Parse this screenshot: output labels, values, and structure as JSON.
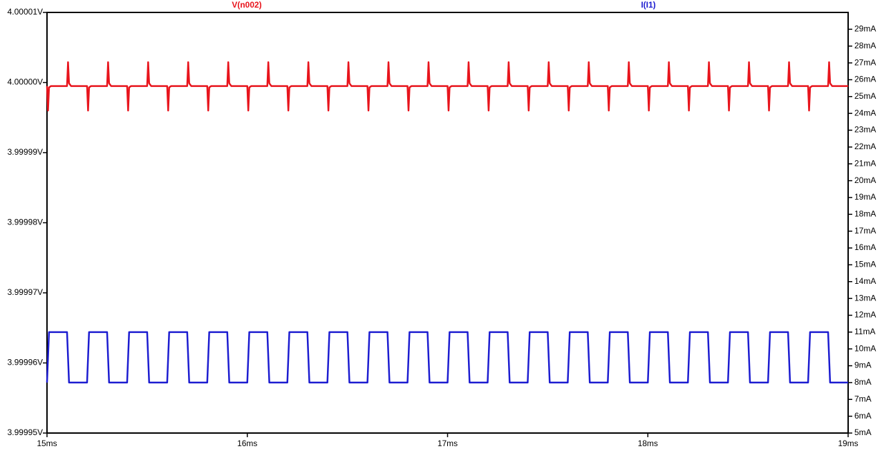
{
  "chart_data": {
    "type": "line",
    "xticks": [
      {
        "value": 15,
        "label": "15ms"
      },
      {
        "value": 16,
        "label": "16ms"
      },
      {
        "value": 17,
        "label": "17ms"
      },
      {
        "value": 18,
        "label": "18ms"
      },
      {
        "value": 19,
        "label": "19ms"
      }
    ],
    "xlim": [
      15,
      19
    ],
    "ylim": [
      3.99995,
      4.00001
    ],
    "yticks": [
      {
        "value": 4.00001,
        "label": "4.00001V"
      },
      {
        "value": 4,
        "label": "4.00000V"
      },
      {
        "value": 3.99999,
        "label": "3.99999V"
      },
      {
        "value": 3.99998,
        "label": "3.99998V"
      },
      {
        "value": 3.99997,
        "label": "3.99997V"
      },
      {
        "value": 3.99996,
        "label": "3.99996V"
      },
      {
        "value": 3.99995,
        "label": "3.99995V"
      }
    ],
    "y2lim": [
      5,
      30
    ],
    "y2ticks": [
      {
        "value": 5,
        "label": "5mA"
      },
      {
        "value": 6,
        "label": "6mA"
      },
      {
        "value": 7,
        "label": "7mA"
      },
      {
        "value": 8,
        "label": "8mA"
      },
      {
        "value": 9,
        "label": "9mA"
      },
      {
        "value": 10,
        "label": "10mA"
      },
      {
        "value": 11,
        "label": "11mA"
      },
      {
        "value": 12,
        "label": "12mA"
      },
      {
        "value": 13,
        "label": "13mA"
      },
      {
        "value": 14,
        "label": "14mA"
      },
      {
        "value": 15,
        "label": "15mA"
      },
      {
        "value": 16,
        "label": "16mA"
      },
      {
        "value": 17,
        "label": "17mA"
      },
      {
        "value": 18,
        "label": "18mA"
      },
      {
        "value": 19,
        "label": "19mA"
      },
      {
        "value": 20,
        "label": "20mA"
      },
      {
        "value": 21,
        "label": "21mA"
      },
      {
        "value": 22,
        "label": "22mA"
      },
      {
        "value": 23,
        "label": "23mA"
      },
      {
        "value": 24,
        "label": "24mA"
      },
      {
        "value": 25,
        "label": "25mA"
      },
      {
        "value": 26,
        "label": "26mA"
      },
      {
        "value": 27,
        "label": "27mA"
      },
      {
        "value": 28,
        "label": "28mA"
      },
      {
        "value": 29,
        "label": "29mA"
      }
    ],
    "x": [
      15,
      15.005,
      15.01,
      15.02,
      15.1,
      15.105,
      15.11,
      15.12,
      15.2,
      15.205,
      15.21,
      15.22,
      15.3,
      15.305,
      15.31,
      15.32,
      15.4,
      15.405,
      15.41,
      15.42,
      15.5,
      15.505,
      15.51,
      15.52,
      15.6,
      15.605,
      15.61,
      15.62,
      15.7,
      15.705,
      15.71,
      15.72,
      15.8,
      15.805,
      15.81,
      15.82,
      15.9,
      15.905,
      15.91,
      15.92,
      16,
      16.005,
      16.01,
      16.02,
      16.1,
      16.105,
      16.11,
      16.12,
      16.2,
      16.205,
      16.21,
      16.22,
      16.3,
      16.305,
      16.31,
      16.32,
      16.4,
      16.405,
      16.41,
      16.42,
      16.5,
      16.505,
      16.51,
      16.52,
      16.6,
      16.605,
      16.61,
      16.62,
      16.7,
      16.705,
      16.71,
      16.72,
      16.8,
      16.805,
      16.81,
      16.82,
      16.9,
      16.905,
      16.91,
      16.92,
      17,
      17.005,
      17.01,
      17.02,
      17.1,
      17.105,
      17.11,
      17.12,
      17.2,
      17.205,
      17.21,
      17.22,
      17.3,
      17.305,
      17.31,
      17.32,
      17.4,
      17.405,
      17.41,
      17.42,
      17.5,
      17.505,
      17.51,
      17.52,
      17.6,
      17.605,
      17.61,
      17.62,
      17.7,
      17.705,
      17.71,
      17.72,
      17.8,
      17.805,
      17.81,
      17.82,
      17.9,
      17.905,
      17.91,
      17.92,
      18,
      18.005,
      18.01,
      18.02,
      18.1,
      18.105,
      18.11,
      18.12,
      18.2,
      18.205,
      18.21,
      18.22,
      18.3,
      18.305,
      18.31,
      18.32,
      18.4,
      18.405,
      18.41,
      18.42,
      18.5,
      18.505,
      18.51,
      18.52,
      18.6,
      18.605,
      18.61,
      18.62,
      18.7,
      18.705,
      18.71,
      18.72,
      18.8,
      18.805,
      18.81,
      18.82,
      18.9,
      18.905,
      18.91,
      18.92,
      19
    ],
    "series": [
      {
        "name": "V(n002)",
        "color": "#e8141c",
        "values": [
          3.9999995,
          3.999996,
          3.9999993,
          3.9999995,
          3.9999995,
          4.0000029,
          3.9999999,
          3.9999995,
          3.9999995,
          3.999996,
          3.9999993,
          3.9999995,
          3.9999995,
          4.0000029,
          3.9999999,
          3.9999995,
          3.9999995,
          3.999996,
          3.9999993,
          3.9999995,
          3.9999995,
          4.0000029,
          3.9999999,
          3.9999995,
          3.9999995,
          3.999996,
          3.9999993,
          3.9999995,
          3.9999995,
          4.0000029,
          3.9999999,
          3.9999995,
          3.9999995,
          3.999996,
          3.9999993,
          3.9999995,
          3.9999995,
          4.0000029,
          3.9999999,
          3.9999995,
          3.9999995,
          3.999996,
          3.9999993,
          3.9999995,
          3.9999995,
          4.0000029,
          3.9999999,
          3.9999995,
          3.9999995,
          3.999996,
          3.9999993,
          3.9999995,
          3.9999995,
          4.0000029,
          3.9999999,
          3.9999995,
          3.9999995,
          3.999996,
          3.9999993,
          3.9999995,
          3.9999995,
          4.0000029,
          3.9999999,
          3.9999995,
          3.9999995,
          3.999996,
          3.9999993,
          3.9999995,
          3.9999995,
          4.0000029,
          3.9999999,
          3.9999995,
          3.9999995,
          3.999996,
          3.9999993,
          3.9999995,
          3.9999995,
          4.0000029,
          3.9999999,
          3.9999995,
          3.9999995,
          3.999996,
          3.9999993,
          3.9999995,
          3.9999995,
          4.0000029,
          3.9999999,
          3.9999995,
          3.9999995,
          3.999996,
          3.9999993,
          3.9999995,
          3.9999995,
          4.0000029,
          3.9999999,
          3.9999995,
          3.9999995,
          3.999996,
          3.9999993,
          3.9999995,
          3.9999995,
          4.0000029,
          3.9999999,
          3.9999995,
          3.9999995,
          3.999996,
          3.9999993,
          3.9999995,
          3.9999995,
          4.0000029,
          3.9999999,
          3.9999995,
          3.9999995,
          3.999996,
          3.9999993,
          3.9999995,
          3.9999995,
          4.0000029,
          3.9999999,
          3.9999995,
          3.9999995,
          3.999996,
          3.9999993,
          3.9999995,
          3.9999995,
          4.0000029,
          3.9999999,
          3.9999995,
          3.9999995,
          3.999996,
          3.9999993,
          3.9999995,
          3.9999995,
          4.0000029,
          3.9999999,
          3.9999995,
          3.9999995,
          3.999996,
          3.9999993,
          3.9999995,
          3.9999995,
          4.0000029,
          3.9999999,
          3.9999995,
          3.9999995,
          3.999996,
          3.9999993,
          3.9999995,
          3.9999995,
          4.0000029,
          3.9999999,
          3.9999995,
          3.9999995,
          3.999996,
          3.9999993,
          3.9999995,
          3.9999995,
          4.0000029,
          3.9999999,
          3.9999995,
          3.9999995
        ]
      },
      {
        "name": "I(I1)",
        "color": "#1c1cd0",
        "axis": "y2",
        "values": [
          8,
          9.5,
          11,
          11,
          11,
          9.5,
          8,
          8,
          8,
          9.5,
          11,
          11,
          11,
          9.5,
          8,
          8,
          8,
          9.5,
          11,
          11,
          11,
          9.5,
          8,
          8,
          8,
          9.5,
          11,
          11,
          11,
          9.5,
          8,
          8,
          8,
          9.5,
          11,
          11,
          11,
          9.5,
          8,
          8,
          8,
          9.5,
          11,
          11,
          11,
          9.5,
          8,
          8,
          8,
          9.5,
          11,
          11,
          11,
          9.5,
          8,
          8,
          8,
          9.5,
          11,
          11,
          11,
          9.5,
          8,
          8,
          8,
          9.5,
          11,
          11,
          11,
          9.5,
          8,
          8,
          8,
          9.5,
          11,
          11,
          11,
          9.5,
          8,
          8,
          8,
          9.5,
          11,
          11,
          11,
          9.5,
          8,
          8,
          8,
          9.5,
          11,
          11,
          11,
          9.5,
          8,
          8,
          8,
          9.5,
          11,
          11,
          11,
          9.5,
          8,
          8,
          8,
          9.5,
          11,
          11,
          11,
          9.5,
          8,
          8,
          8,
          9.5,
          11,
          11,
          11,
          9.5,
          8,
          8,
          8,
          9.5,
          11,
          11,
          11,
          9.5,
          8,
          8,
          8,
          9.5,
          11,
          11,
          11,
          9.5,
          8,
          8,
          8,
          9.5,
          11,
          11,
          11,
          9.5,
          8,
          8,
          8,
          9.5,
          11,
          11,
          11,
          9.5,
          8,
          8,
          8,
          9.5,
          11,
          11,
          11,
          9.5,
          8,
          8,
          8
        ]
      }
    ]
  }
}
